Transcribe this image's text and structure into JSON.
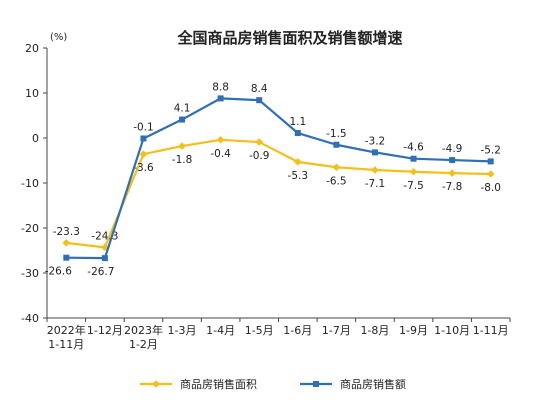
{
  "chart_data": {
    "type": "line",
    "title": "全国商品房销售面积及销售额增速",
    "unit_label": "(%)",
    "ylim": [
      -40,
      20
    ],
    "y_ticks": [
      20,
      10,
      0,
      -10,
      -20,
      -30,
      -40
    ],
    "grid": false,
    "legend_position": "bottom",
    "categories": [
      [
        "2022年",
        "1-11月"
      ],
      [
        "1-12月"
      ],
      [
        "2023年",
        "1-2月"
      ],
      [
        "1-3月"
      ],
      [
        "1-4月"
      ],
      [
        "1-5月"
      ],
      [
        "1-6月"
      ],
      [
        "1-7月"
      ],
      [
        "1-8月"
      ],
      [
        "1-9月"
      ],
      [
        "1-10月"
      ],
      [
        "1-11月"
      ]
    ],
    "series": [
      {
        "name": "商品房销售面积",
        "color": "#f2c019",
        "marker": "diamond",
        "label_position": "below",
        "values": [
          -23.3,
          -24.3,
          -3.6,
          -1.8,
          -0.4,
          -0.9,
          -5.3,
          -6.5,
          -7.1,
          -7.5,
          -7.8,
          -8.0
        ],
        "labels": [
          "-23.3",
          "-24.3",
          "-3.6",
          "-1.8",
          "-0.4",
          "-0.9",
          "-5.3",
          "-6.5",
          "-7.1",
          "-7.5",
          "-7.8",
          "-8.0"
        ]
      },
      {
        "name": "商品房销售额",
        "color": "#2e6fb8",
        "marker": "square",
        "label_position": "above",
        "values": [
          -26.6,
          -26.7,
          -0.1,
          4.1,
          8.8,
          8.4,
          1.1,
          -1.5,
          -3.2,
          -4.6,
          -4.9,
          -5.2
        ],
        "labels": [
          "-26.6",
          "-26.7",
          "-0.1",
          "4.1",
          "8.8",
          "8.4",
          "1.1",
          "-1.5",
          "-3.2",
          "-4.6",
          "-4.9",
          "-5.2"
        ]
      }
    ]
  }
}
